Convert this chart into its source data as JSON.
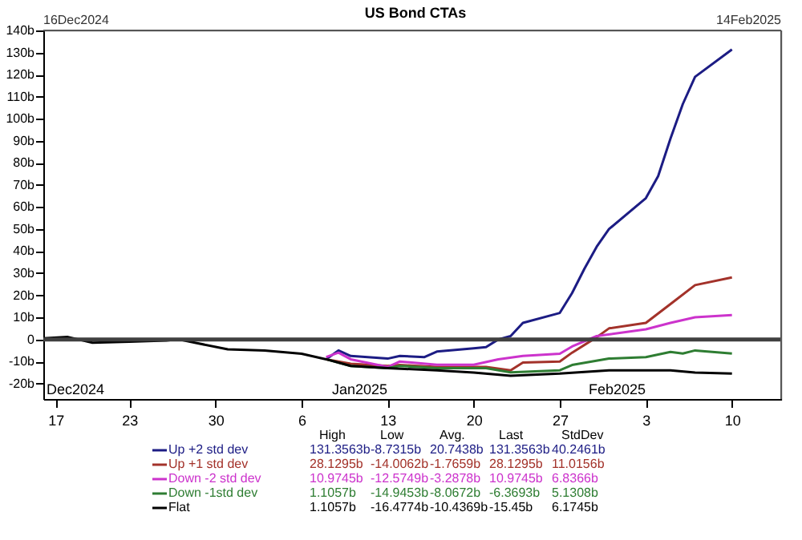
{
  "chart_data": {
    "type": "line",
    "title": "US Bond CTAs",
    "xlim": [
      "2024-12-16",
      "2025-02-14"
    ],
    "xticks": [
      {
        "value": "2024-12-17",
        "label": "17"
      },
      {
        "value": "2024-12-23",
        "label": "23"
      },
      {
        "value": "2024-12-30",
        "label": "30"
      },
      {
        "value": "2025-01-06",
        "label": "6"
      },
      {
        "value": "2025-01-13",
        "label": "13"
      },
      {
        "value": "2025-01-20",
        "label": "20"
      },
      {
        "value": "2025-01-27",
        "label": "27"
      },
      {
        "value": "2025-02-03",
        "label": "3"
      },
      {
        "value": "2025-02-10",
        "label": "10"
      }
    ],
    "ylim": [
      -27,
      140
    ],
    "yticks": [
      {
        "value": -20,
        "label": "-20b"
      },
      {
        "value": -10,
        "label": "-10b"
      },
      0,
      {
        "value": 10,
        "label": "10b"
      },
      {
        "value": 20,
        "label": "20b"
      },
      {
        "value": 30,
        "label": "30b"
      },
      {
        "value": 40,
        "label": "40b"
      },
      {
        "value": 50,
        "label": "50b"
      },
      {
        "value": 60,
        "label": "60b"
      },
      {
        "value": 70,
        "label": "70b"
      },
      {
        "value": 80,
        "label": "80b"
      },
      {
        "value": 90,
        "label": "90b"
      },
      {
        "value": 100,
        "label": "100b"
      },
      {
        "value": 110,
        "label": "110b"
      },
      {
        "value": 120,
        "label": "120b"
      },
      {
        "value": 130,
        "label": "130b"
      },
      {
        "value": 140,
        "label": "140b"
      }
    ],
    "grid": false,
    "legend": "bottom",
    "line_style": "solid",
    "ref_lines": [
      {
        "axis": "y",
        "value": 0,
        "color": "#404040"
      }
    ],
    "annotations": [
      "Dec2024",
      "Jan2025",
      "Feb2025",
      "High",
      "Low",
      "Avg.",
      "Last",
      "StdDev",
      "131.3563b",
      "-8.7315b",
      "20.7438b",
      "131.3563b",
      "40.2461b",
      "28.1295b",
      "-14.0062b",
      "-1.7659b",
      "28.1295b",
      "11.0156b",
      "10.9745b",
      "-12.5749b",
      "-3.2878b",
      "10.9745b",
      "6.8366b",
      "1.1057b",
      "-14.9453b",
      "-8.0672b",
      "-6.3693b",
      "5.1308b",
      "1.1057b",
      "-16.4774b",
      "-10.4369b",
      "-15.45b",
      "6.1745b",
      "16Dec2024",
      "14Feb2025"
    ],
    "series": [
      {
        "name": "Up +2 std dev",
        "color": "#1c1c84",
        "x": [
          "2025-01-08",
          "2025-01-09",
          "2025-01-10",
          "2025-01-13",
          "2025-01-14",
          "2025-01-16",
          "2025-01-17",
          "2025-01-20",
          "2025-01-21",
          "2025-01-22",
          "2025-01-23",
          "2025-01-24",
          "2025-01-27",
          "2025-01-28",
          "2025-01-29",
          "2025-01-30",
          "2025-01-31",
          "2025-02-03",
          "2025-02-04",
          "2025-02-05",
          "2025-02-06",
          "2025-02-07",
          "2025-02-10"
        ],
        "values": [
          -9,
          -5,
          -7.5,
          -8.7,
          -7.5,
          -8,
          -5.5,
          -4,
          -3.5,
          0,
          1.5,
          7.5,
          12,
          21,
          32,
          42,
          50,
          64,
          74,
          91,
          106.6,
          119,
          131.4
        ]
      },
      {
        "name": "Up +1 std dev",
        "color": "#a3322a",
        "x": [
          "2025-01-08",
          "2025-01-10",
          "2025-01-13",
          "2025-01-14",
          "2025-01-17",
          "2025-01-21",
          "2025-01-23",
          "2025-01-24",
          "2025-01-27",
          "2025-01-28",
          "2025-01-30",
          "2025-01-31",
          "2025-02-03",
          "2025-02-05",
          "2025-02-07",
          "2025-02-10"
        ],
        "values": [
          -9,
          -11,
          -12,
          -11.6,
          -12.5,
          -12.5,
          -14,
          -10.5,
          -10,
          -6,
          1,
          5,
          7.5,
          16,
          24.6,
          28.1
        ]
      },
      {
        "name": "Down -2 std dev",
        "color": "#cc33cc",
        "x": [
          "2025-01-08",
          "2025-01-09",
          "2025-01-10",
          "2025-01-13",
          "2025-01-14",
          "2025-01-17",
          "2025-01-20",
          "2025-01-22",
          "2025-01-24",
          "2025-01-27",
          "2025-01-28",
          "2025-01-30",
          "2025-02-03",
          "2025-02-05",
          "2025-02-07",
          "2025-02-10"
        ],
        "values": [
          -8,
          -6,
          -9,
          -12.5,
          -10,
          -11.5,
          -11.5,
          -9,
          -7.5,
          -6.5,
          -3.2,
          1.5,
          4.6,
          7.5,
          10,
          11
        ]
      },
      {
        "name": "Down -1std dev",
        "color": "#2e7d32",
        "x": [
          "2025-01-08",
          "2025-01-10",
          "2025-01-13",
          "2025-01-14",
          "2025-01-17",
          "2025-01-21",
          "2025-01-23",
          "2025-01-27",
          "2025-01-28",
          "2025-01-31",
          "2025-02-03",
          "2025-02-05",
          "2025-02-06",
          "2025-02-07",
          "2025-02-10"
        ],
        "values": [
          -9,
          -12,
          -13,
          -12,
          -13,
          -13,
          -14.9,
          -14,
          -11.6,
          -8.7,
          -8,
          -5.7,
          -6.4,
          -5,
          -6.4
        ]
      },
      {
        "name": "Flat",
        "color": "#000000",
        "x": [
          "2024-12-16",
          "2024-12-18",
          "2024-12-20",
          "2024-12-23",
          "2024-12-26",
          "2024-12-27",
          "2024-12-31",
          "2025-01-03",
          "2025-01-06",
          "2025-01-08",
          "2025-01-10",
          "2025-01-13",
          "2025-01-17",
          "2025-01-20",
          "2025-01-23",
          "2025-01-27",
          "2025-01-31",
          "2025-02-03",
          "2025-02-05",
          "2025-02-07",
          "2025-02-10"
        ],
        "values": [
          0.5,
          1.1,
          -1.5,
          -1,
          -0.5,
          0,
          -4.5,
          -5,
          -6.5,
          -9,
          -12,
          -13,
          -14,
          -15,
          -16.5,
          -15.5,
          -14,
          -14,
          -14,
          -15,
          -15.5
        ]
      }
    ]
  }
}
